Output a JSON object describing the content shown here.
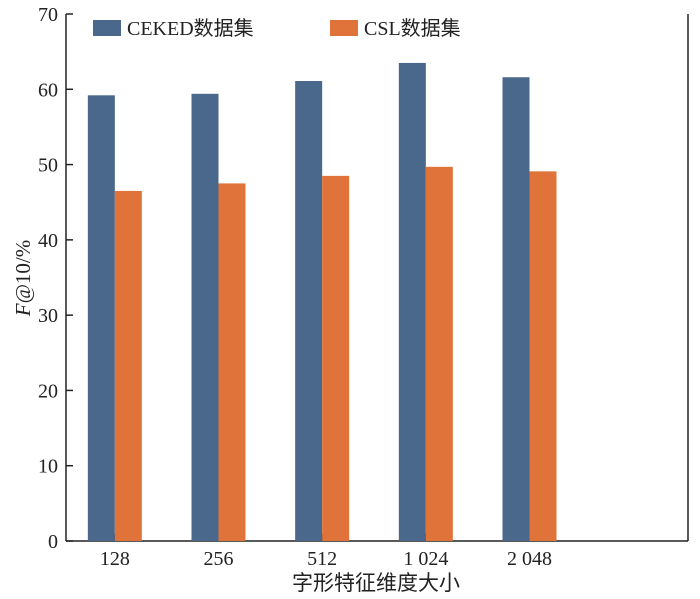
{
  "chart_data": {
    "type": "bar",
    "title": "",
    "xlabel": "字形特征维度大小",
    "ylabel": "F@10/%",
    "ylabel_italic_part": "F",
    "ylabel_rest": "@10/%",
    "categories": [
      "128",
      "256",
      "512",
      "1 024",
      "2 048"
    ],
    "series": [
      {
        "name": "CEKED数据集",
        "color": "#4a678c",
        "values": [
          59.2,
          59.4,
          61.1,
          63.5,
          61.6
        ]
      },
      {
        "name": "CSL数据集",
        "color": "#e07339",
        "values": [
          46.5,
          47.5,
          48.5,
          49.7,
          49.1
        ]
      }
    ],
    "ylim": [
      0,
      70
    ],
    "yticks": [
      0,
      10,
      20,
      30,
      40,
      50,
      60,
      70
    ],
    "grid": false,
    "legend": "top-left"
  }
}
